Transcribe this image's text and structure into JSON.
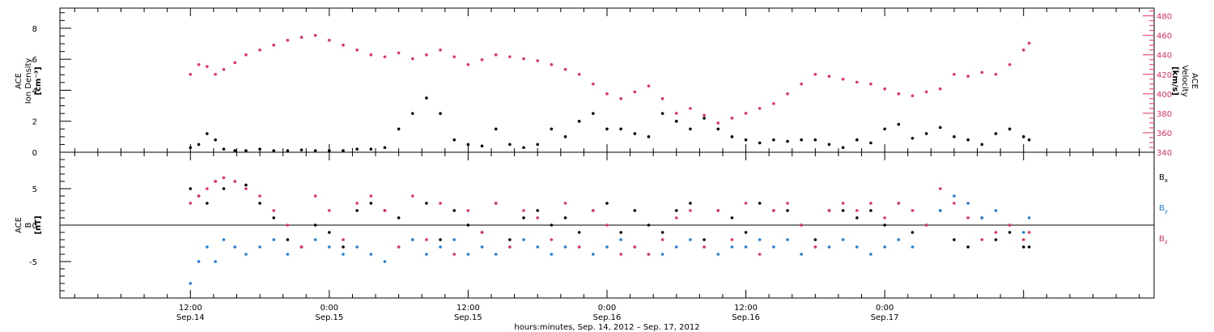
{
  "chart_data": [
    {
      "type": "scatter",
      "panel": "top",
      "left_axis_label_lines": [
        "ACE",
        "Ion Density"
      ],
      "left_axis_unit": "[cm⁻³]",
      "right_axis_label_lines": [
        "ACE",
        "Velocity"
      ],
      "right_axis_unit": "[km/s]",
      "y_left_range": [
        0,
        9.3
      ],
      "y_left_ticks": [
        "0",
        "2",
        "4",
        "6",
        "8"
      ],
      "y_right_range": [
        340,
        488
      ],
      "y_right_ticks": [
        "340",
        "360",
        "380",
        "400",
        "420",
        "440",
        "460",
        "480"
      ],
      "series": [
        {
          "axis": "left",
          "color": "#000000",
          "x": [
            0,
            0.03,
            0.06,
            0.09,
            0.12,
            0.16,
            0.2,
            0.25,
            0.3,
            0.35,
            0.4,
            0.45,
            0.5,
            0.55,
            0.6,
            0.65,
            0.7,
            0.75,
            0.8,
            0.85,
            0.9,
            0.95,
            1.0,
            1.05,
            1.1,
            1.15,
            1.2,
            1.25,
            1.3,
            1.35,
            1.4,
            1.45,
            1.5,
            1.55,
            1.6,
            1.65,
            1.7,
            1.75,
            1.8,
            1.85,
            1.9,
            1.95,
            2.0,
            2.05,
            2.1,
            2.15,
            2.2,
            2.25,
            2.3,
            2.35,
            2.4,
            2.45,
            2.5,
            2.55,
            2.6,
            2.65,
            2.7,
            2.75,
            2.8,
            2.85,
            2.9,
            2.95,
            3.0,
            3.02
          ],
          "values": [
            0.3,
            0.5,
            1.2,
            0.8,
            0.2,
            0.1,
            0.1,
            0.2,
            0.1,
            0.1,
            0.15,
            0.1,
            0.1,
            0.1,
            0.2,
            0.2,
            0.3,
            1.5,
            2.5,
            3.5,
            2.5,
            0.8,
            0.5,
            0.4,
            1.5,
            0.5,
            0.3,
            0.5,
            1.5,
            1.0,
            2.0,
            2.5,
            1.5,
            1.5,
            1.2,
            1.0,
            2.5,
            2.0,
            1.5,
            2.2,
            1.5,
            1.0,
            0.8,
            0.6,
            0.8,
            0.7,
            0.8,
            0.8,
            0.5,
            0.3,
            0.8,
            0.6,
            1.5,
            1.8,
            0.9,
            1.2,
            1.6,
            1.0,
            0.8,
            0.5,
            1.2,
            1.5,
            1.0,
            0.8
          ]
        },
        {
          "axis": "right",
          "color": "#e8305a",
          "x": [
            0,
            0.03,
            0.06,
            0.09,
            0.12,
            0.16,
            0.2,
            0.25,
            0.3,
            0.35,
            0.4,
            0.45,
            0.5,
            0.55,
            0.6,
            0.65,
            0.7,
            0.75,
            0.8,
            0.85,
            0.9,
            0.95,
            1.0,
            1.05,
            1.1,
            1.15,
            1.2,
            1.25,
            1.3,
            1.35,
            1.4,
            1.45,
            1.5,
            1.55,
            1.6,
            1.65,
            1.7,
            1.75,
            1.8,
            1.85,
            1.9,
            1.95,
            2.0,
            2.05,
            2.1,
            2.15,
            2.2,
            2.25,
            2.3,
            2.35,
            2.4,
            2.45,
            2.5,
            2.55,
            2.6,
            2.65,
            2.7,
            2.75,
            2.8,
            2.85,
            2.9,
            2.95,
            3.0,
            3.02
          ],
          "values": [
            420,
            430,
            428,
            420,
            425,
            432,
            440,
            445,
            450,
            455,
            458,
            460,
            455,
            450,
            445,
            440,
            438,
            442,
            436,
            440,
            445,
            438,
            430,
            435,
            440,
            438,
            436,
            434,
            430,
            425,
            420,
            410,
            400,
            395,
            402,
            408,
            395,
            380,
            385,
            378,
            370,
            375,
            380,
            385,
            390,
            400,
            410,
            420,
            418,
            415,
            412,
            410,
            405,
            400,
            398,
            402,
            405,
            420,
            418,
            422,
            420,
            430,
            445,
            452
          ]
        }
      ]
    },
    {
      "type": "scatter",
      "panel": "bottom",
      "left_axis_label_lines": [
        "ACE",
        "B"
      ],
      "left_axis_unit": "[nT]",
      "y_left_range": [
        -10,
        10
      ],
      "y_left_ticks": [
        "-5",
        "0",
        "5"
      ],
      "series": [
        {
          "name": "Bx",
          "label_main": "B",
          "label_sub": "x",
          "color": "#000000",
          "x": [
            0,
            0.03,
            0.06,
            0.09,
            0.12,
            0.16,
            0.2,
            0.25,
            0.3,
            0.35,
            0.4,
            0.45,
            0.5,
            0.55,
            0.6,
            0.65,
            0.7,
            0.75,
            0.8,
            0.85,
            0.9,
            0.95,
            1.0,
            1.05,
            1.1,
            1.15,
            1.2,
            1.25,
            1.3,
            1.35,
            1.4,
            1.45,
            1.5,
            1.55,
            1.6,
            1.65,
            1.7,
            1.75,
            1.8,
            1.85,
            1.9,
            1.95,
            2.0,
            2.05,
            2.1,
            2.15,
            2.2,
            2.25,
            2.3,
            2.35,
            2.4,
            2.45,
            2.5,
            2.55,
            2.6,
            2.65,
            2.7,
            2.75,
            2.8,
            2.85,
            2.9,
            2.95,
            3.0,
            3.02
          ],
          "values": [
            5,
            4,
            3,
            6,
            5,
            6,
            5.5,
            3,
            1,
            -2,
            -3,
            0,
            -1,
            -3,
            2,
            3,
            2,
            1,
            -2,
            3,
            -2,
            2,
            0,
            -1,
            3,
            -2,
            1,
            2,
            0,
            1,
            -1,
            2,
            3,
            -1,
            2,
            0,
            -1,
            2,
            3,
            -2,
            2,
            1,
            -1,
            3,
            2,
            2,
            0,
            -2,
            2,
            2,
            1,
            2,
            0,
            3,
            -1,
            0,
            2,
            -2,
            -3,
            1,
            -2,
            -1,
            -3,
            -3
          ]
        },
        {
          "name": "By",
          "label_main": "B",
          "label_sub": "y",
          "color": "#1e7fe0",
          "x": [
            0,
            0.03,
            0.06,
            0.09,
            0.12,
            0.16,
            0.2,
            0.25,
            0.3,
            0.35,
            0.4,
            0.45,
            0.5,
            0.55,
            0.6,
            0.65,
            0.7,
            0.75,
            0.8,
            0.85,
            0.9,
            0.95,
            1.0,
            1.05,
            1.1,
            1.15,
            1.2,
            1.25,
            1.3,
            1.35,
            1.4,
            1.45,
            1.5,
            1.55,
            1.6,
            1.65,
            1.7,
            1.75,
            1.8,
            1.85,
            1.9,
            1.95,
            2.0,
            2.05,
            2.1,
            2.15,
            2.2,
            2.25,
            2.3,
            2.35,
            2.4,
            2.45,
            2.5,
            2.55,
            2.6,
            2.65,
            2.7,
            2.75,
            2.8,
            2.85,
            2.9,
            2.95,
            3.0,
            3.02
          ],
          "values": [
            -8,
            -5,
            -3,
            -5,
            -2,
            -3,
            -4,
            -3,
            -2,
            -4,
            -3,
            -2,
            -3,
            -4,
            -3,
            -4,
            -5,
            -3,
            -2,
            -4,
            -3,
            -2,
            -4,
            -3,
            -4,
            -3,
            -2,
            -3,
            -4,
            -3,
            -3,
            -4,
            -3,
            -2,
            -3,
            -4,
            -4,
            -3,
            -2,
            -3,
            -4,
            -3,
            -3,
            -2,
            -3,
            -2,
            -4,
            -3,
            -3,
            -2,
            -3,
            -4,
            -3,
            -2,
            -3,
            0,
            2,
            4,
            3,
            1,
            2,
            0,
            -1,
            1
          ]
        },
        {
          "name": "Bz",
          "label_main": "B",
          "label_sub": "z",
          "color": "#e8305a",
          "x": [
            0,
            0.03,
            0.06,
            0.09,
            0.12,
            0.16,
            0.2,
            0.25,
            0.3,
            0.35,
            0.4,
            0.45,
            0.5,
            0.55,
            0.6,
            0.65,
            0.7,
            0.75,
            0.8,
            0.85,
            0.9,
            0.95,
            1.0,
            1.05,
            1.1,
            1.15,
            1.2,
            1.25,
            1.3,
            1.35,
            1.4,
            1.45,
            1.5,
            1.55,
            1.6,
            1.65,
            1.7,
            1.75,
            1.8,
            1.85,
            1.9,
            1.95,
            2.0,
            2.05,
            2.1,
            2.15,
            2.2,
            2.25,
            2.3,
            2.35,
            2.4,
            2.45,
            2.5,
            2.55,
            2.6,
            2.65,
            2.7,
            2.75,
            2.8,
            2.85,
            2.9,
            2.95,
            3.0,
            3.02
          ],
          "values": [
            3,
            4,
            5,
            6,
            6.5,
            6,
            5,
            4,
            2,
            0,
            -3,
            4,
            2,
            -2,
            3,
            4,
            2,
            -3,
            4,
            -2,
            3,
            -4,
            2,
            -1,
            3,
            -3,
            2,
            1,
            -2,
            3,
            -3,
            2,
            0,
            -4,
            -3,
            -4,
            -2,
            1,
            2,
            -3,
            2,
            -2,
            3,
            -4,
            2,
            3,
            0,
            -3,
            2,
            3,
            2,
            3,
            1,
            3,
            2,
            0,
            5,
            3,
            1,
            -2,
            -1,
            0,
            -2,
            -1
          ]
        }
      ]
    }
  ],
  "x_axis": {
    "range": [
      -0.47,
      3.47
    ],
    "ticks": [
      {
        "x": 0.0,
        "time": "12:00",
        "date": "Sep.14"
      },
      {
        "x": 0.5,
        "time": "0:00",
        "date": "Sep.15"
      },
      {
        "x": 1.0,
        "time": "12:00",
        "date": "Sep.15"
      },
      {
        "x": 1.5,
        "time": "0:00",
        "date": "Sep.16"
      },
      {
        "x": 2.0,
        "time": "12:00",
        "date": "Sep.16"
      },
      {
        "x": 2.5,
        "time": "0:00",
        "date": "Sep.17"
      }
    ],
    "label": "hours:minutes, Sep. 14, 2012 – Sep. 17, 2012"
  }
}
